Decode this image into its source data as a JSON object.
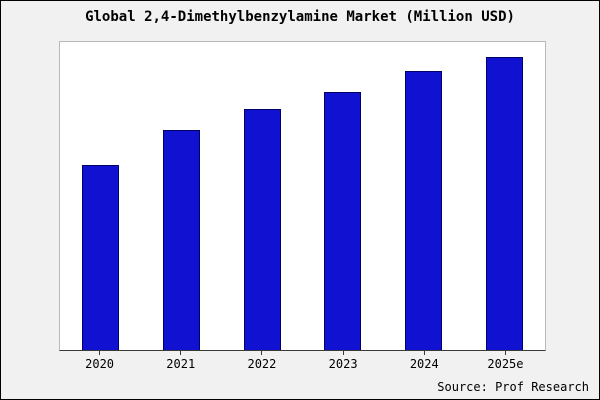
{
  "title": "Global 2,4-Dimethylbenzylamine Market (Million USD)",
  "source": "Source: Prof Research",
  "colors": {
    "bar": "#1111d2",
    "bar_border": "#000066",
    "background": "#f1f1f1",
    "plot_background": "#ffffff",
    "frame_border": "#000000"
  },
  "chart_data": {
    "type": "bar",
    "categories": [
      "2020",
      "2021",
      "2022",
      "2023",
      "2024",
      "2025e"
    ],
    "values": [
      63,
      75,
      82,
      88,
      95,
      100
    ],
    "title": "Global 2,4-Dimethylbenzylamine Market (Million USD)",
    "xlabel": "",
    "ylabel": "",
    "ylim": [
      0,
      105
    ],
    "grid": false,
    "legend": false,
    "annotations": [
      "Source: Prof Research"
    ]
  }
}
